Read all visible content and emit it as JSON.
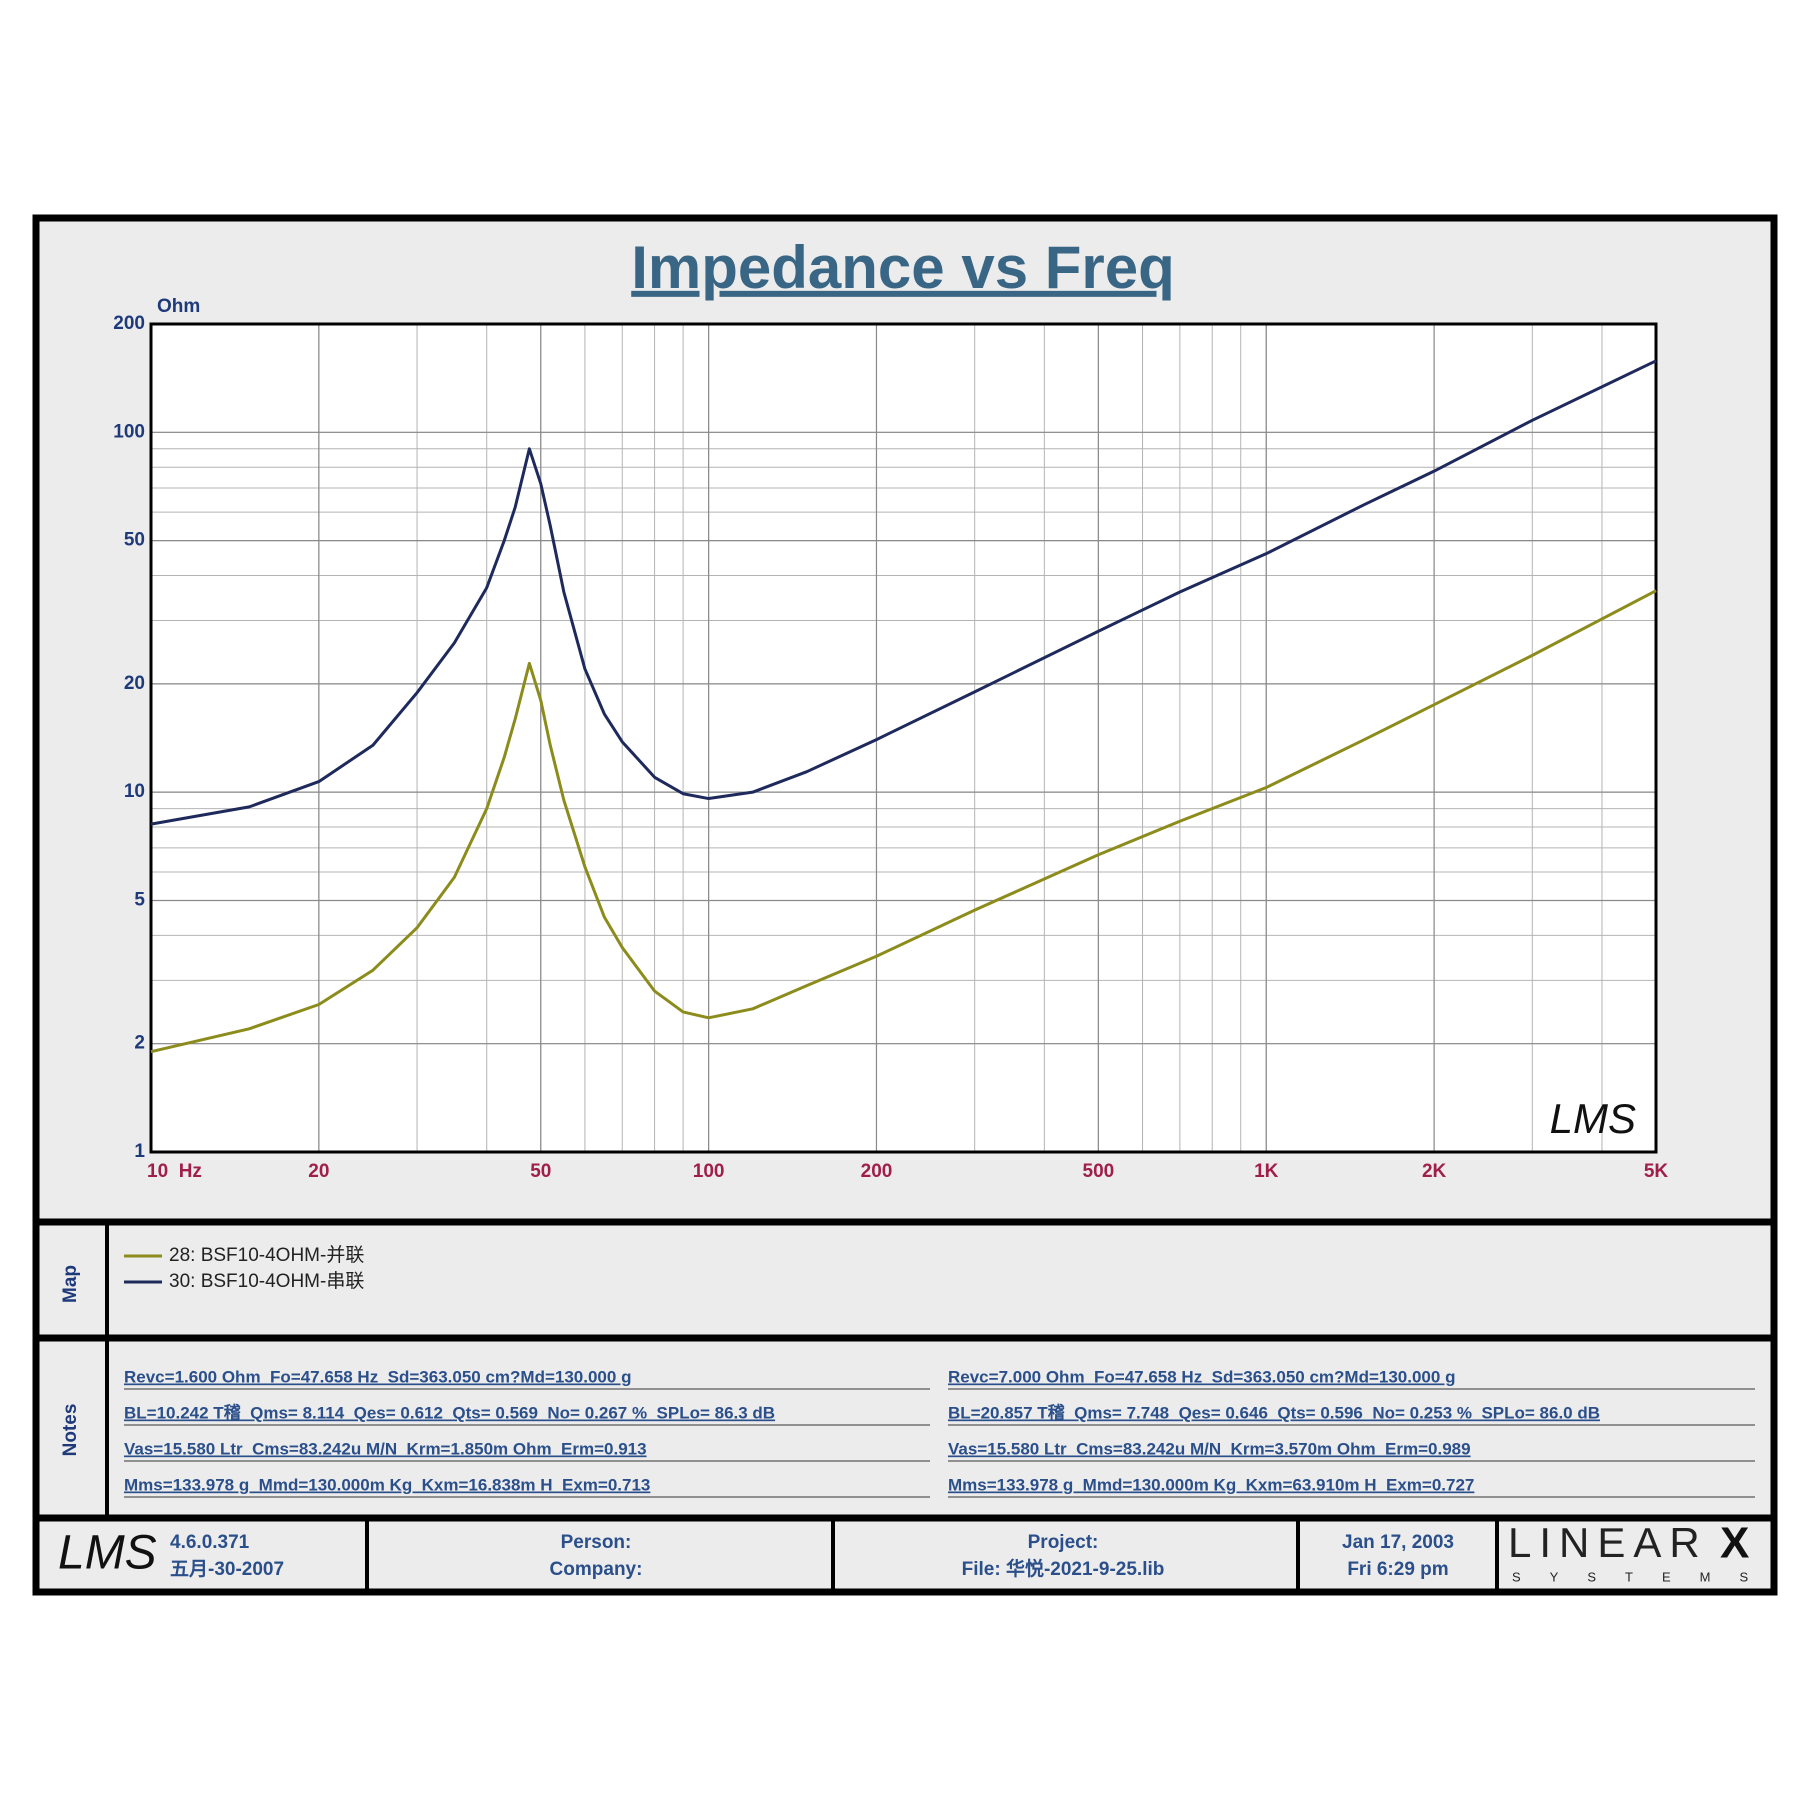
{
  "chart_data": {
    "type": "line",
    "title": "Impedance vs Freq",
    "y_label": "Ohm",
    "log_x": true,
    "log_y": true,
    "grid": true,
    "minor_grid": true,
    "xlim": [
      10,
      5000
    ],
    "ylim": [
      1,
      200
    ],
    "xticks": [
      {
        "value": 10,
        "label": "10  Hz"
      },
      20,
      50,
      100,
      200,
      500,
      {
        "value": 1000,
        "label": "1K"
      },
      {
        "value": 2000,
        "label": "2K"
      },
      {
        "value": 5000,
        "label": "5K"
      }
    ],
    "yticks": [
      1,
      2,
      5,
      10,
      20,
      50,
      100,
      200
    ],
    "watermark": "LMS",
    "x": [
      10,
      15,
      20,
      25,
      30,
      35,
      40,
      43,
      45,
      47.7,
      50,
      52,
      55,
      60,
      65,
      70,
      80,
      90,
      100,
      120,
      150,
      200,
      300,
      500,
      700,
      1000,
      1500,
      2000,
      3000,
      5000
    ],
    "series": [
      {
        "name": "28: BSF10-4OHM-并联",
        "color": "#8c8c1c",
        "values": [
          1.9,
          2.2,
          2.57,
          3.2,
          4.2,
          5.8,
          9,
          12.5,
          16,
          22.8,
          18,
          13.5,
          9.5,
          6.2,
          4.5,
          3.7,
          2.8,
          2.45,
          2.36,
          2.5,
          2.9,
          3.5,
          4.7,
          6.7,
          8.3,
          10.3,
          14,
          17.5,
          24,
          36.3
        ]
      },
      {
        "name": "30: BSF10-4OHM-串联",
        "color": "#1f2a5c",
        "values": [
          8.15,
          9.1,
          10.7,
          13.5,
          18.9,
          26,
          37,
          50,
          62,
          90,
          72,
          55,
          36,
          22,
          16.5,
          13.8,
          11,
          9.9,
          9.6,
          10,
          11.4,
          14,
          19,
          28,
          36,
          46,
          63,
          78,
          108,
          158
        ]
      }
    ]
  },
  "map_label": "Map",
  "notes": {
    "label": "Notes",
    "columns": [
      [
        "Revc=1.600 Ohm  Fo=47.658 Hz  Sd=363.050 cm?Md=130.000 g",
        "BL=10.242 T稽  Qms= 8.114  Qes= 0.612  Qts= 0.569  No= 0.267 %  SPLo= 86.3 dB",
        "Vas=15.580 Ltr  Cms=83.242u M/N  Krm=1.850m Ohm  Erm=0.913",
        "Mms=133.978 g  Mmd=130.000m Kg  Kxm=16.838m H  Exm=0.713"
      ],
      [
        "Revc=7.000 Ohm  Fo=47.658 Hz  Sd=363.050 cm?Md=130.000 g",
        "BL=20.857 T稽  Qms= 7.748  Qes= 0.646  Qts= 0.596  No= 0.253 %  SPLo= 86.0 dB",
        "Vas=15.580 Ltr  Cms=83.242u M/N  Krm=3.570m Ohm  Erm=0.989",
        "Mms=133.978 g  Mmd=130.000m Kg  Kxm=63.910m H  Exm=0.727"
      ]
    ]
  },
  "footer": {
    "logo": "LMS",
    "version": "4.6.0.371",
    "version_date": "五月-30-2007",
    "person": "Person:",
    "company": "Company:",
    "project": "Project:",
    "file": "File: 华悦-2021-9-25.lib",
    "date": "Jan 17, 2003",
    "time": "Fri  6:29 pm",
    "brand": "LINEAR",
    "brand_mark": "X",
    "brand_sub": "SYSTEMS"
  }
}
